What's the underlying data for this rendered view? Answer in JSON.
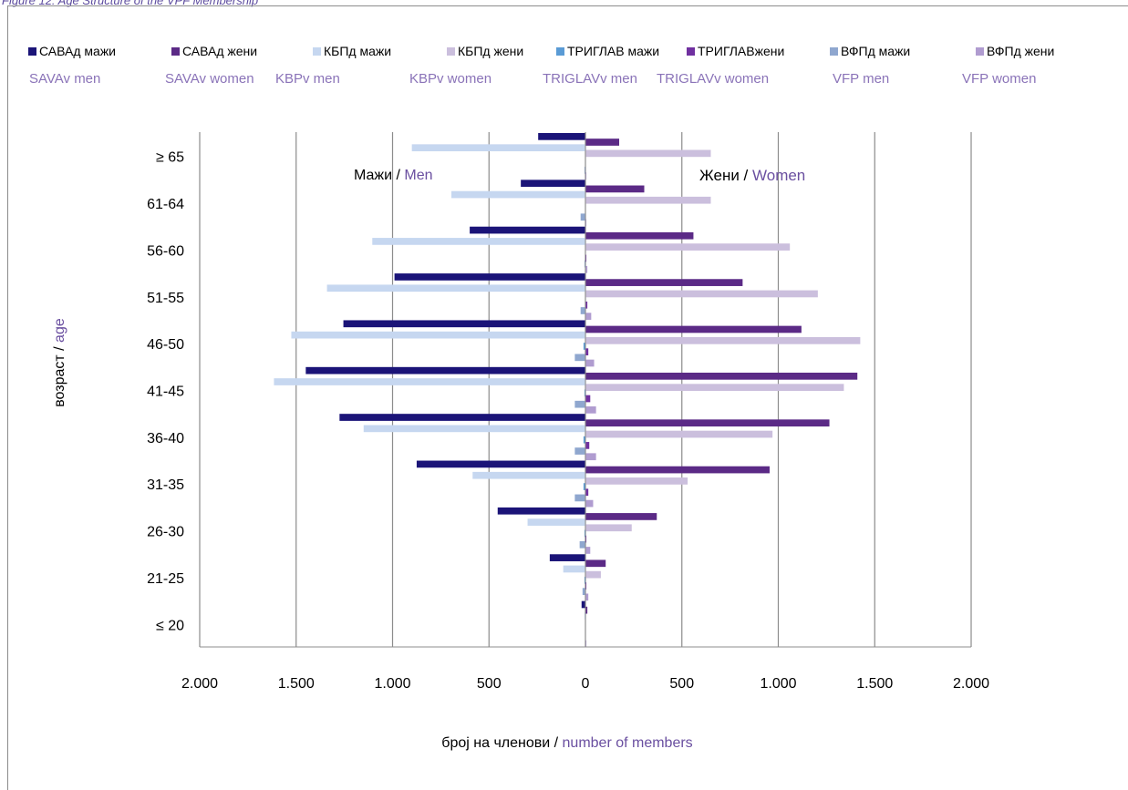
{
  "caption": "Figure 12: Age Structure of the VPF Membership",
  "legend_en": [
    "SAVAv men",
    "SAVAv women",
    "KBPv men",
    "KBPv women",
    "TRIGLAVv men",
    "TRIGLAVv women",
    "VFP men",
    "VFP women"
  ],
  "annotations": {
    "men_mk": "Мажи / ",
    "men_en": "Men",
    "women_mk": "Жени / ",
    "women_en": "Women"
  },
  "chart_data": {
    "type": "bar",
    "orientation": "horizontal",
    "title": "",
    "xlabel_mk": "број на членови / ",
    "xlabel_en": "number of members",
    "ylabel_mk": "возраст / ",
    "ylabel_en": "age",
    "xlim": [
      -2000,
      2000
    ],
    "x_ticks": [
      -2000,
      -1500,
      -1000,
      -500,
      0,
      500,
      1000,
      1500,
      2000
    ],
    "x_tick_labels": [
      "2.000",
      "1.500",
      "1.000",
      "500",
      "0",
      "500",
      "1.000",
      "1.500",
      "2.000"
    ],
    "grid": true,
    "legend_position": "top",
    "categories": [
      "≥ 65",
      "61-64",
      "56-60",
      "51-55",
      "46-50",
      "41-45",
      "36-40",
      "31-35",
      "26-30",
      "21-25",
      "≤ 20"
    ],
    "series": [
      {
        "name": "САВАд мажи",
        "color": "#1b1478",
        "values": [
          -245,
          -335,
          -600,
          -990,
          -1255,
          -1450,
          -1275,
          -875,
          -455,
          -185,
          -20
        ]
      },
      {
        "name": "САВАд жени",
        "color": "#5b2a86",
        "values": [
          175,
          305,
          560,
          815,
          1120,
          1410,
          1265,
          955,
          370,
          105,
          10
        ]
      },
      {
        "name": "КБПд мажи",
        "color": "#c6d7f0",
        "values": [
          -900,
          -695,
          -1105,
          -1340,
          -1525,
          -1615,
          -1150,
          -585,
          -300,
          -115,
          -5
        ]
      },
      {
        "name": "КБПд жени",
        "color": "#cbbfdd",
        "values": [
          650,
          650,
          1060,
          1205,
          1425,
          1340,
          970,
          530,
          240,
          80,
          0
        ]
      },
      {
        "name": "ТРИГЛАВ мажи",
        "color": "#5a9bd5",
        "values": [
          0,
          0,
          0,
          0,
          -10,
          -5,
          -10,
          -10,
          -5,
          -5,
          0
        ]
      },
      {
        "name": "ТРИГЛАВжени",
        "color": "#7030a0",
        "values": [
          0,
          0,
          5,
          10,
          15,
          25,
          20,
          15,
          5,
          5,
          0
        ]
      },
      {
        "name": "ВФПд мажи",
        "color": "#8fa7cf",
        "values": [
          -5,
          -25,
          -5,
          -25,
          -55,
          -55,
          -55,
          -55,
          -30,
          -15,
          0
        ]
      },
      {
        "name": "ВФПд жени",
        "color": "#b09cd0",
        "values": [
          5,
          5,
          10,
          30,
          45,
          55,
          55,
          40,
          25,
          15,
          5
        ]
      }
    ]
  }
}
